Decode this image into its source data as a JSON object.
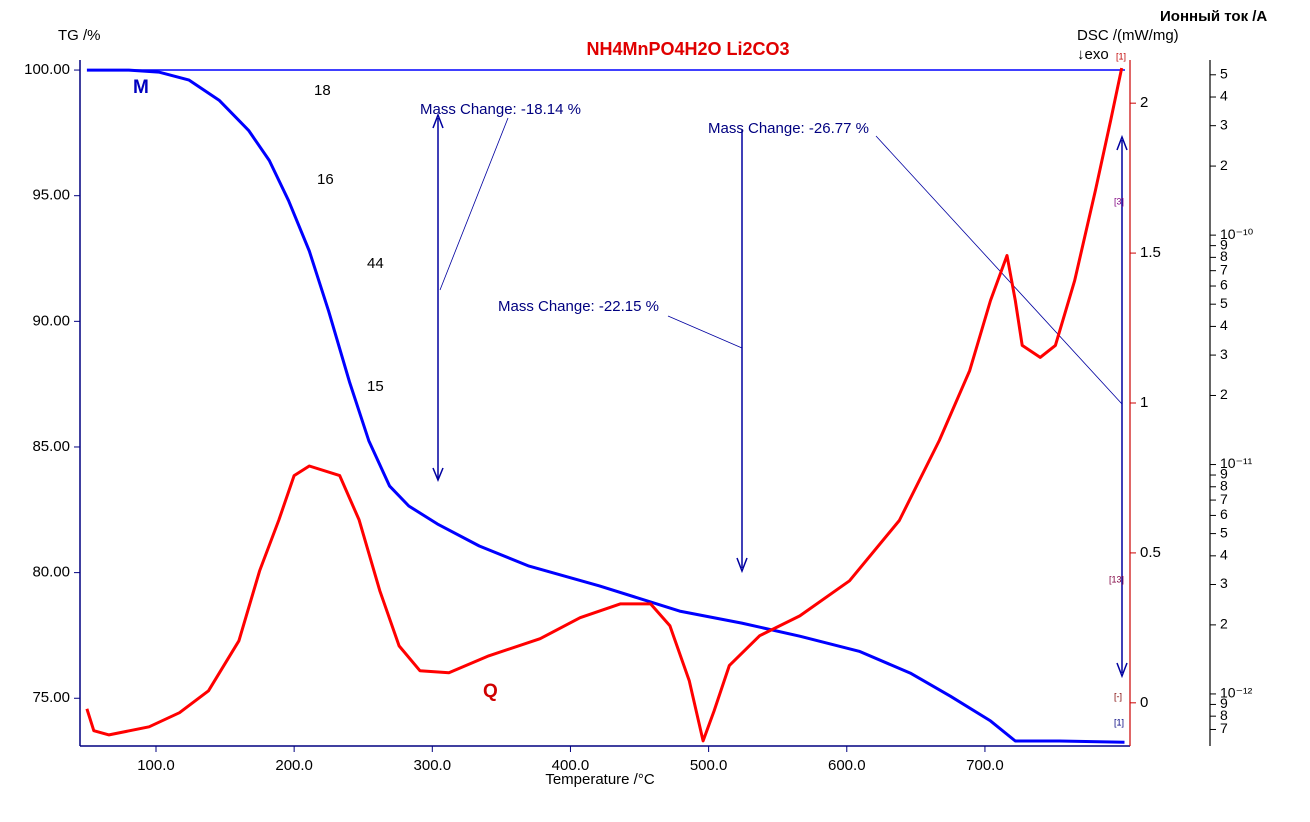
{
  "chart_data": {
    "type": "line",
    "title": "NH4MnPO4H2O Li2CO3",
    "x_label": "Temperature /°C",
    "y_label": "TG /%",
    "y2_label": "DSC /(mW/mg)",
    "y2_note": "↓exo",
    "y3_label": "Ионный ток /А",
    "xlim": [
      45,
      805
    ],
    "xticks": [
      {
        "value": 100,
        "label": "100.0"
      },
      {
        "value": 200,
        "label": "200.0"
      },
      {
        "value": 300,
        "label": "300.0"
      },
      {
        "value": 400,
        "label": "400.0"
      },
      {
        "value": 500,
        "label": "500.0"
      },
      {
        "value": 600,
        "label": "600.0"
      },
      {
        "value": 700,
        "label": "700.0"
      }
    ],
    "ylim": [
      73.1,
      100.4
    ],
    "yticks": [
      {
        "value": 75,
        "label": "75.00"
      },
      {
        "value": 80,
        "label": "80.00"
      },
      {
        "value": 85,
        "label": "85.00"
      },
      {
        "value": 90,
        "label": "90.00"
      },
      {
        "value": 95,
        "label": "95.00"
      },
      {
        "value": 100,
        "label": "100.00"
      }
    ],
    "y2lim": [
      -0.144,
      2.144
    ],
    "y2ticks": [
      0,
      0.5,
      1,
      1.5,
      2
    ],
    "y3lim": [
      5.93e-13,
      5.8e-10
    ],
    "y3log": true,
    "y3ticks": [
      {
        "value": 5e-10,
        "label": "5"
      },
      {
        "value": 4e-10,
        "label": "4"
      },
      {
        "value": 3e-10,
        "label": "3"
      },
      {
        "value": 2e-10,
        "label": "2"
      },
      {
        "value": 1e-10,
        "label": "10⁻¹⁰"
      },
      {
        "value": 9e-11,
        "label": "9"
      },
      {
        "value": 8e-11,
        "label": "8"
      },
      {
        "value": 7e-11,
        "label": "7"
      },
      {
        "value": 6e-11,
        "label": "6"
      },
      {
        "value": 5e-11,
        "label": "5"
      },
      {
        "value": 4e-11,
        "label": "4"
      },
      {
        "value": 3e-11,
        "label": "3"
      },
      {
        "value": 2e-11,
        "label": "2"
      },
      {
        "value": 1e-11,
        "label": "10⁻¹¹"
      },
      {
        "value": 9e-12,
        "label": "9"
      },
      {
        "value": 8e-12,
        "label": "8"
      },
      {
        "value": 7e-12,
        "label": "7"
      },
      {
        "value": 6e-12,
        "label": "6"
      },
      {
        "value": 5e-12,
        "label": "5"
      },
      {
        "value": 4e-12,
        "label": "4"
      },
      {
        "value": 3e-12,
        "label": "3"
      },
      {
        "value": 2e-12,
        "label": "2"
      },
      {
        "value": 1e-12,
        "label": "10⁻¹²"
      },
      {
        "value": 9e-13,
        "label": "9"
      },
      {
        "value": 8e-13,
        "label": "8"
      },
      {
        "value": 7e-13,
        "label": "7"
      }
    ],
    "series": [
      {
        "name": "M",
        "color": "#0000ff",
        "x": [
          50,
          80.4,
          102,
          124,
          145.7,
          167,
          182,
          196,
          211,
          225,
          240,
          254,
          269,
          283,
          303.6,
          334,
          370,
          421,
          479,
          524,
          566,
          609,
          646,
          675,
          704,
          722,
          754,
          801
        ],
        "values": [
          100,
          100,
          99.92,
          99.6,
          98.8,
          97.6,
          96.4,
          94.8,
          92.8,
          90.4,
          87.6,
          85.25,
          83.45,
          82.65,
          81.94,
          81.06,
          80.26,
          79.47,
          78.47,
          77.99,
          77.47,
          76.87,
          76.0,
          75.08,
          74.1,
          73.3,
          73.3,
          73.25
        ]
      },
      {
        "name": "Q",
        "color": "#ff0000",
        "axis": "y2",
        "x": [
          50,
          55,
          66,
          95,
          117,
          138,
          160,
          175,
          189,
          200,
          211,
          233,
          247,
          262,
          276,
          291,
          312,
          341,
          378,
          407,
          436,
          458,
          472,
          486,
          496,
          504,
          515,
          537,
          566,
          602,
          638,
          667,
          689,
          704,
          716,
          722,
          727,
          740,
          751,
          765,
          780,
          791,
          799
        ],
        "values": [
          -0.02,
          -0.093,
          -0.107,
          -0.08,
          -0.033,
          0.04,
          0.207,
          0.44,
          0.61,
          0.758,
          0.79,
          0.758,
          0.61,
          0.374,
          0.19,
          0.107,
          0.1,
          0.157,
          0.214,
          0.284,
          0.33,
          0.33,
          0.257,
          0.073,
          -0.127,
          -0.027,
          0.124,
          0.224,
          0.29,
          0.407,
          0.608,
          0.875,
          1.108,
          1.342,
          1.492,
          1.342,
          1.192,
          1.152,
          1.192,
          1.409,
          1.71,
          1.943,
          2.117
        ]
      }
    ],
    "annotations": [
      "Mass Change: -18.14 %",
      "Mass Change: -22.15 %",
      "Mass Change: -26.77 %",
      "18",
      "16",
      "44",
      "15"
    ],
    "markers": [
      "[1]",
      "[3]",
      "[13]",
      "[-]",
      "[1]"
    ]
  }
}
